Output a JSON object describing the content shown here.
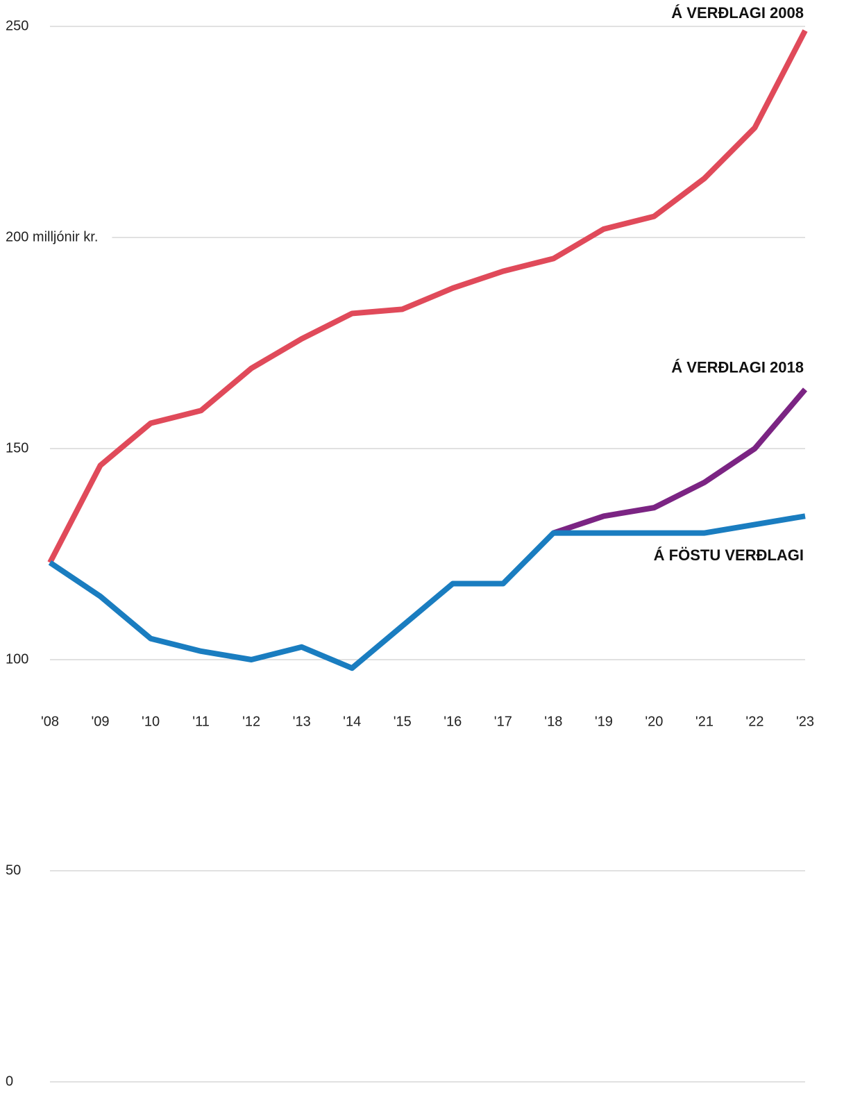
{
  "chart_data": {
    "type": "line",
    "categories": [
      "'08",
      "'09",
      "'10",
      "'11",
      "'12",
      "'13",
      "'14",
      "'15",
      "'16",
      "'17",
      "'18",
      "'19",
      "'20",
      "'21",
      "'22",
      "'23"
    ],
    "series": [
      {
        "name": "Á VERÐLAGI 2008",
        "color": "#e04a5a",
        "values": [
          123,
          146,
          156,
          159,
          169,
          176,
          182,
          183,
          188,
          192,
          195,
          202,
          205,
          214,
          226,
          249
        ]
      },
      {
        "name": "Á VERÐLAGI 2018",
        "color": "#7b2483",
        "values": [
          null,
          null,
          null,
          null,
          null,
          null,
          null,
          null,
          null,
          null,
          130,
          134,
          136,
          142,
          150,
          164
        ]
      },
      {
        "name": "Á FÖSTU VERÐLAGI",
        "color": "#1a7dc0",
        "values": [
          123,
          115,
          105,
          102,
          100,
          103,
          98,
          108,
          118,
          118,
          130,
          130,
          130,
          130,
          132,
          134
        ]
      }
    ],
    "ylim": [
      0,
      250
    ],
    "yticks": [
      0,
      50,
      100,
      150,
      {
        "value": 200,
        "label": "200 milljónir kr."
      },
      250
    ],
    "grid": true
  }
}
